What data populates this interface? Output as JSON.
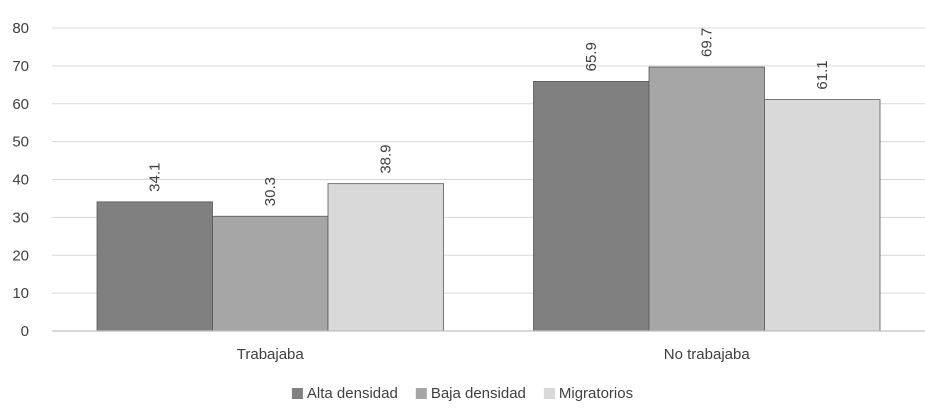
{
  "chart_data": {
    "type": "bar",
    "title": "",
    "xlabel": "",
    "ylabel": "",
    "categories": [
      "Trabajaba",
      "No trabajaba"
    ],
    "series": [
      {
        "name": "Alta densidad",
        "values": [
          34.1,
          65.9
        ],
        "color": "#808080"
      },
      {
        "name": "Baja densidad",
        "values": [
          30.3,
          69.7
        ],
        "color": "#A6A6A6"
      },
      {
        "name": "Migratorios",
        "values": [
          38.9,
          61.1
        ],
        "color": "#D9D9D9"
      }
    ],
    "ylim": [
      0,
      80
    ],
    "yticks": [
      0,
      10,
      20,
      30,
      40,
      50,
      60,
      70,
      80
    ],
    "grid": true,
    "legend_position": "bottom",
    "data_labels": true
  }
}
